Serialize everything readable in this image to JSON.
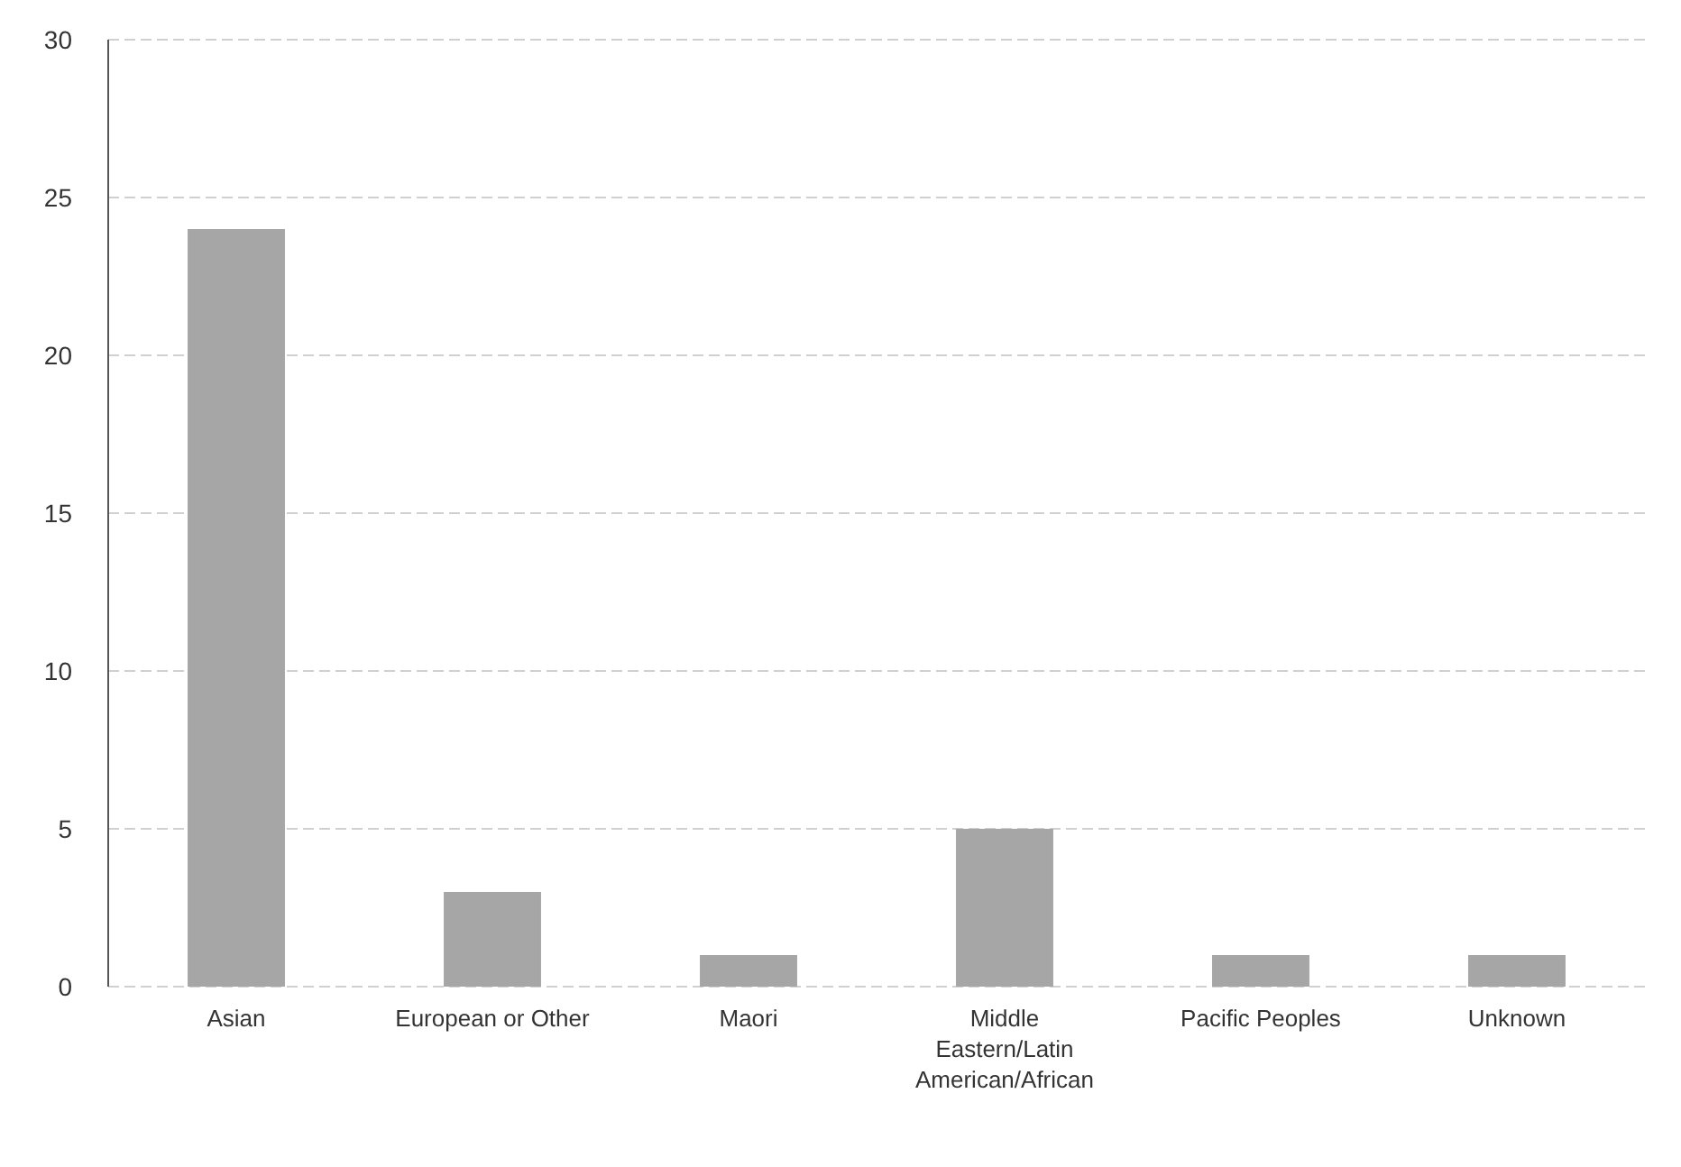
{
  "chart_data": {
    "type": "bar",
    "categories": [
      "Asian",
      "European or Other",
      "Maori",
      "Middle Eastern/Latin American/African",
      "Pacific Peoples",
      "Unknown"
    ],
    "values": [
      24,
      3,
      1,
      5,
      1,
      1
    ],
    "color": "#a6a6a6",
    "ylim": [
      0,
      30
    ],
    "yticks": [
      0,
      5,
      10,
      15,
      20,
      25,
      30
    ],
    "grid": "y"
  }
}
